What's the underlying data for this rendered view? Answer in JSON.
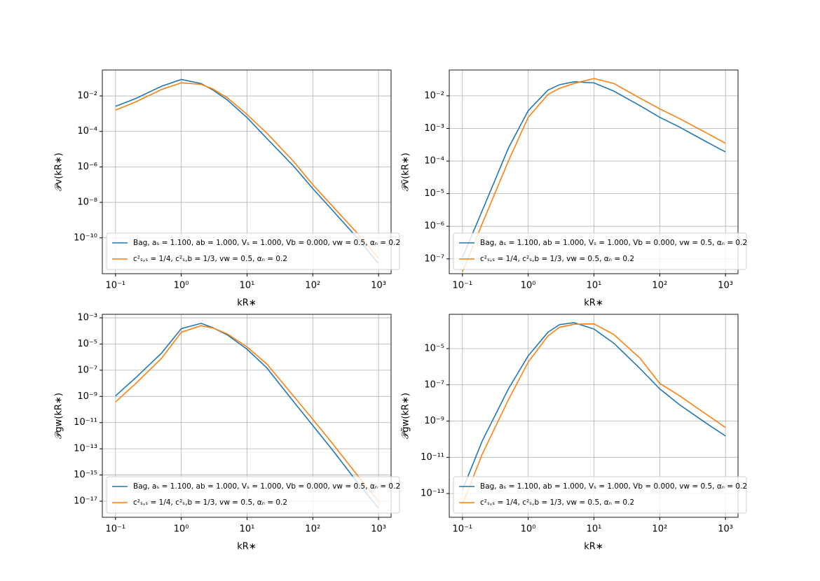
{
  "chart_data": [
    {
      "type": "line",
      "xscale": "log",
      "yscale": "log",
      "grid": true,
      "legend": "lower left",
      "xlabel": "kR∗",
      "ylabel": "𝒫v(kR∗)",
      "x": [
        0.1,
        0.2,
        0.5,
        1,
        2,
        3,
        5,
        10,
        20,
        50,
        100,
        200,
        500,
        1000
      ],
      "xlim": [
        0.063,
        1550
      ],
      "ylim": [
        9.5e-13,
        0.29
      ],
      "xticks": [
        {
          "value": 0.1,
          "label": "10⁻¹"
        },
        {
          "value": 1,
          "label": "10⁰"
        },
        {
          "value": 10,
          "label": "10¹"
        },
        {
          "value": 100,
          "label": "10²"
        },
        {
          "value": 1000,
          "label": "10³"
        }
      ],
      "yticks": [
        {
          "value": 1e-10,
          "label": "10⁻¹⁰"
        },
        {
          "value": 1e-08,
          "label": "10⁻⁸"
        },
        {
          "value": 1e-06,
          "label": "10⁻⁶"
        },
        {
          "value": 0.0001,
          "label": "10⁻⁴"
        },
        {
          "value": 0.01,
          "label": "10⁻²"
        }
      ],
      "series": [
        {
          "name": "Bag, aₛ = 1.100, ab = 1.000, Vₛ = 1.000, Vb = 0.000, vw = 0.5, αₙ = 0.2",
          "color": "#1f77b4",
          "values": [
            0.0026,
            0.007,
            0.035,
            0.085,
            0.05,
            0.022,
            0.006,
            0.0006,
            4e-05,
            1.2e-06,
            6e-08,
            3.5e-09,
            8e-11,
            3.5e-12
          ]
        },
        {
          "name": "c²ₛ,ₛ = 1/4, c²ₛ,b = 1/3, vw = 0.5, αₙ = 0.2",
          "color": "#ff7f0e",
          "values": [
            0.0016,
            0.0045,
            0.023,
            0.055,
            0.045,
            0.025,
            0.008,
            0.0009,
            8e-05,
            2.2e-06,
            1e-07,
            6e-09,
            1.5e-10,
            7e-12
          ]
        }
      ]
    },
    {
      "type": "line",
      "xscale": "log",
      "yscale": "log",
      "grid": true,
      "legend": "lower left",
      "xlabel": "kR∗",
      "ylabel": "𝒫ṽ(kR∗)",
      "x": [
        0.1,
        0.2,
        0.5,
        1,
        2,
        3,
        5,
        10,
        20,
        50,
        100,
        200,
        500,
        1000
      ],
      "xlim": [
        0.063,
        1550
      ],
      "ylim": [
        3.5e-08,
        0.062
      ],
      "xticks": [
        {
          "value": 0.1,
          "label": "10⁻¹"
        },
        {
          "value": 1,
          "label": "10⁰"
        },
        {
          "value": 10,
          "label": "10¹"
        },
        {
          "value": 100,
          "label": "10²"
        },
        {
          "value": 1000,
          "label": "10³"
        }
      ],
      "yticks": [
        {
          "value": 1e-07,
          "label": "10⁻⁷"
        },
        {
          "value": 1e-06,
          "label": "10⁻⁶"
        },
        {
          "value": 1e-05,
          "label": "10⁻⁵"
        },
        {
          "value": 0.0001,
          "label": "10⁻⁴"
        },
        {
          "value": 0.001,
          "label": "10⁻³"
        },
        {
          "value": 0.01,
          "label": "10⁻²"
        }
      ],
      "series": [
        {
          "name": "Bag, aₛ = 1.100, ab = 1.000, Vₛ = 1.000, Vb = 0.000, vw = 0.5, αₙ = 0.2",
          "color": "#1f77b4",
          "values": [
            1.1e-07,
            3e-06,
            0.00025,
            0.0035,
            0.015,
            0.022,
            0.027,
            0.025,
            0.014,
            0.005,
            0.0022,
            0.0011,
            0.0004,
            0.00019
          ]
        },
        {
          "name": "c²ₛ,ₛ = 1/4, c²ₛ,b = 1/3, vw = 0.5, αₙ = 0.2",
          "color": "#ff7f0e",
          "values": [
            4e-08,
            1.2e-06,
            0.0001,
            0.0022,
            0.011,
            0.017,
            0.024,
            0.034,
            0.024,
            0.0085,
            0.004,
            0.002,
            0.00075,
            0.00035
          ]
        }
      ]
    },
    {
      "type": "line",
      "xscale": "log",
      "yscale": "log",
      "grid": true,
      "legend": "lower left",
      "xlabel": "kR∗",
      "ylabel": "𝒫gw(kR∗)",
      "x": [
        0.1,
        0.2,
        0.5,
        1,
        2,
        3,
        5,
        10,
        20,
        50,
        100,
        200,
        500,
        1000
      ],
      "xlim": [
        0.063,
        1550
      ],
      "ylim": [
        5.9e-19,
        0.00186
      ],
      "xticks": [
        {
          "value": 0.1,
          "label": "10⁻¹"
        },
        {
          "value": 1,
          "label": "10⁰"
        },
        {
          "value": 10,
          "label": "10¹"
        },
        {
          "value": 100,
          "label": "10²"
        },
        {
          "value": 1000,
          "label": "10³"
        }
      ],
      "yticks": [
        {
          "value": 1e-17,
          "label": "10⁻¹⁷"
        },
        {
          "value": 1e-15,
          "label": "10⁻¹⁵"
        },
        {
          "value": 1e-13,
          "label": "10⁻¹³"
        },
        {
          "value": 1e-11,
          "label": "10⁻¹¹"
        },
        {
          "value": 1e-09,
          "label": "10⁻⁹"
        },
        {
          "value": 1e-07,
          "label": "10⁻⁷"
        },
        {
          "value": 1e-05,
          "label": "10⁻⁵"
        },
        {
          "value": 0.001,
          "label": "10⁻³"
        }
      ],
      "series": [
        {
          "name": "Bag, aₛ = 1.100, ab = 1.000, Vₛ = 1.000, Vb = 0.000, vw = 0.5, αₙ = 0.2",
          "color": "#1f77b4",
          "values": [
            1.1e-09,
            2.5e-08,
            2e-06,
            0.00015,
            0.00038,
            0.00018,
            5e-05,
            4e-06,
            1.5e-07,
            4.5e-10,
            6e-12,
            8e-14,
            2e-16,
            3e-18
          ]
        },
        {
          "name": "c²ₛ,ₛ = 1/4, c²ₛ,b = 1/3, vw = 0.5, αₙ = 0.2",
          "color": "#ff7f0e",
          "values": [
            3.8e-10,
            9e-09,
            8e-07,
            8e-05,
            0.00025,
            0.00017,
            6e-05,
            6e-06,
            3e-07,
            1.2e-09,
            1.8e-11,
            2.5e-13,
            7e-16,
            1e-17
          ]
        }
      ]
    },
    {
      "type": "line",
      "xscale": "log",
      "yscale": "log",
      "grid": true,
      "legend": "lower left",
      "xlabel": "kR∗",
      "ylabel": "𝒫g̃w(kR∗)",
      "x": [
        0.1,
        0.2,
        0.5,
        1,
        2,
        3,
        5,
        10,
        20,
        50,
        100,
        200,
        500,
        1000
      ],
      "xlim": [
        0.063,
        1550
      ],
      "ylim": [
        4.9e-15,
        0.00078
      ],
      "xticks": [
        {
          "value": 0.1,
          "label": "10⁻¹"
        },
        {
          "value": 1,
          "label": "10⁰"
        },
        {
          "value": 10,
          "label": "10¹"
        },
        {
          "value": 100,
          "label": "10²"
        },
        {
          "value": 1000,
          "label": "10³"
        }
      ],
      "yticks": [
        {
          "value": 1e-13,
          "label": "10⁻¹³"
        },
        {
          "value": 1e-11,
          "label": "10⁻¹¹"
        },
        {
          "value": 1e-09,
          "label": "10⁻⁹"
        },
        {
          "value": 1e-07,
          "label": "10⁻⁷"
        },
        {
          "value": 1e-05,
          "label": "10⁻⁵"
        }
      ],
      "series": [
        {
          "name": "Bag, aₛ = 1.100, ab = 1.000, Vₛ = 1.000, Vb = 0.000, vw = 0.5, αₙ = 0.2",
          "color": "#1f77b4",
          "values": [
            1.6e-13,
            8e-11,
            6e-08,
            4e-06,
            8e-05,
            0.00021,
            0.00027,
            0.00012,
            2e-05,
            8e-07,
            6e-08,
            8e-09,
            8e-10,
            1.5e-10
          ]
        },
        {
          "name": "c²ₛ,ₛ = 1/4, c²ₛ,b = 1/3, vw = 0.5, αₙ = 0.2",
          "color": "#ff7f0e",
          "values": [
            2.5e-14,
            1.5e-11,
            1.5e-08,
            1.8e-06,
            5e-05,
            0.00015,
            0.00022,
            0.00023,
            6e-05,
            3e-06,
            1.2e-07,
            2.5e-08,
            2.5e-09,
            4.4e-10
          ]
        }
      ]
    }
  ]
}
